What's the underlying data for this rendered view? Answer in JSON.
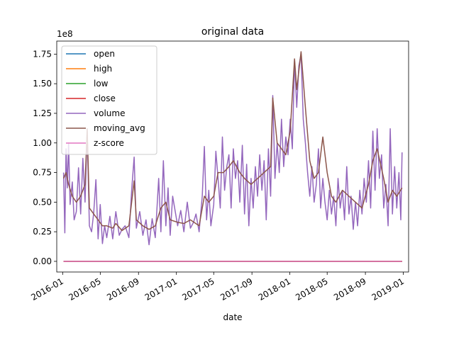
{
  "chart_data": {
    "type": "line",
    "title": "original data",
    "xlabel": "date",
    "ylabel": "",
    "y_offset_text": "1e8",
    "xlim": [
      "2015-12-13",
      "2019-01-18"
    ],
    "ylim": [
      -0.09,
      1.86
    ],
    "y_scale_multiplier": 100000000,
    "x_ticks": [
      "2016-01",
      "2016-05",
      "2016-09",
      "2017-01",
      "2017-05",
      "2017-09",
      "2018-01",
      "2018-05",
      "2018-09",
      "2019-01"
    ],
    "x_tick_dates": [
      "2016-01-01",
      "2016-05-01",
      "2016-09-01",
      "2017-01-01",
      "2017-05-01",
      "2017-09-01",
      "2018-01-01",
      "2018-05-01",
      "2018-09-01",
      "2019-01-01"
    ],
    "y_ticks": [
      "0.00",
      "0.25",
      "0.50",
      "0.75",
      "1.00",
      "1.25",
      "1.50",
      "1.75"
    ],
    "y_tick_values": [
      0.0,
      0.25,
      0.5,
      0.75,
      1.0,
      1.25,
      1.5,
      1.75
    ],
    "legend_position": "upper-left",
    "grid": false,
    "series": [
      {
        "name": "open",
        "color": "#1f77b4",
        "values": [
          [
            "2016-01-04",
            0.0
          ],
          [
            "2018-12-28",
            0.0
          ]
        ]
      },
      {
        "name": "high",
        "color": "#ff7f0e",
        "values": [
          [
            "2016-01-04",
            0.0
          ],
          [
            "2018-12-28",
            0.0
          ]
        ]
      },
      {
        "name": "low",
        "color": "#2ca02c",
        "values": [
          [
            "2016-01-04",
            0.0
          ],
          [
            "2018-12-28",
            0.0
          ]
        ]
      },
      {
        "name": "close",
        "color": "#d62728",
        "values": [
          [
            "2016-01-04",
            0.0
          ],
          [
            "2018-12-28",
            0.0
          ]
        ]
      },
      {
        "name": "volume",
        "color": "#9467bd",
        "values": [
          [
            "2016-01-04",
            0.75
          ],
          [
            "2016-01-08",
            0.24
          ],
          [
            "2016-01-12",
            0.95
          ],
          [
            "2016-01-16",
            0.62
          ],
          [
            "2016-01-20",
            1.0
          ],
          [
            "2016-01-25",
            0.48
          ],
          [
            "2016-02-01",
            0.67
          ],
          [
            "2016-02-07",
            0.35
          ],
          [
            "2016-02-14",
            0.42
          ],
          [
            "2016-02-21",
            0.79
          ],
          [
            "2016-02-28",
            0.4
          ],
          [
            "2016-03-06",
            0.87
          ],
          [
            "2016-03-13",
            0.5
          ],
          [
            "2016-03-20",
            1.1
          ],
          [
            "2016-03-27",
            0.3
          ],
          [
            "2016-04-03",
            0.25
          ],
          [
            "2016-04-10",
            0.41
          ],
          [
            "2016-04-17",
            0.69
          ],
          [
            "2016-04-24",
            0.19
          ],
          [
            "2016-05-01",
            0.48
          ],
          [
            "2016-05-08",
            0.15
          ],
          [
            "2016-05-15",
            0.3
          ],
          [
            "2016-05-22",
            0.2
          ],
          [
            "2016-06-01",
            0.38
          ],
          [
            "2016-06-10",
            0.19
          ],
          [
            "2016-06-20",
            0.42
          ],
          [
            "2016-07-01",
            0.22
          ],
          [
            "2016-07-10",
            0.27
          ],
          [
            "2016-07-20",
            0.3
          ],
          [
            "2016-08-01",
            0.2
          ],
          [
            "2016-08-10",
            0.6
          ],
          [
            "2016-08-18",
            0.88
          ],
          [
            "2016-08-25",
            0.28
          ],
          [
            "2016-09-05",
            0.42
          ],
          [
            "2016-09-15",
            0.22
          ],
          [
            "2016-09-25",
            0.35
          ],
          [
            "2016-10-05",
            0.14
          ],
          [
            "2016-10-15",
            0.36
          ],
          [
            "2016-10-25",
            0.2
          ],
          [
            "2016-11-05",
            0.7
          ],
          [
            "2016-11-12",
            0.25
          ],
          [
            "2016-11-20",
            0.85
          ],
          [
            "2016-11-28",
            0.3
          ],
          [
            "2016-12-05",
            0.62
          ],
          [
            "2016-12-12",
            0.22
          ],
          [
            "2016-12-20",
            0.55
          ],
          [
            "2017-01-05",
            0.3
          ],
          [
            "2017-01-15",
            0.43
          ],
          [
            "2017-01-25",
            0.25
          ],
          [
            "2017-02-05",
            0.5
          ],
          [
            "2017-02-15",
            0.28
          ],
          [
            "2017-02-25",
            0.33
          ],
          [
            "2017-03-05",
            0.4
          ],
          [
            "2017-03-15",
            0.25
          ],
          [
            "2017-03-25",
            0.55
          ],
          [
            "2017-04-01",
            0.97
          ],
          [
            "2017-04-08",
            0.35
          ],
          [
            "2017-04-15",
            0.6
          ],
          [
            "2017-04-22",
            0.3
          ],
          [
            "2017-05-01",
            0.48
          ],
          [
            "2017-05-08",
            0.93
          ],
          [
            "2017-05-15",
            0.7
          ],
          [
            "2017-05-22",
            0.45
          ],
          [
            "2017-05-29",
            1.05
          ],
          [
            "2017-06-05",
            0.6
          ],
          [
            "2017-06-12",
            0.8
          ],
          [
            "2017-06-19",
            0.9
          ],
          [
            "2017-06-26",
            0.45
          ],
          [
            "2017-07-03",
            0.95
          ],
          [
            "2017-07-10",
            0.7
          ],
          [
            "2017-07-17",
            0.85
          ],
          [
            "2017-07-24",
            0.5
          ],
          [
            "2017-08-01",
            0.98
          ],
          [
            "2017-08-08",
            0.4
          ],
          [
            "2017-08-15",
            0.82
          ],
          [
            "2017-08-22",
            0.3
          ],
          [
            "2017-08-29",
            0.7
          ],
          [
            "2017-09-05",
            0.45
          ],
          [
            "2017-09-12",
            0.8
          ],
          [
            "2017-09-19",
            0.55
          ],
          [
            "2017-09-26",
            0.9
          ],
          [
            "2017-10-03",
            0.6
          ],
          [
            "2017-10-10",
            0.85
          ],
          [
            "2017-10-17",
            0.35
          ],
          [
            "2017-10-24",
            0.95
          ],
          [
            "2017-10-31",
            0.55
          ],
          [
            "2017-11-07",
            1.4
          ],
          [
            "2017-11-14",
            0.7
          ],
          [
            "2017-11-21",
            1.0
          ],
          [
            "2017-11-28",
            0.75
          ],
          [
            "2017-12-05",
            1.2
          ],
          [
            "2017-12-12",
            0.8
          ],
          [
            "2017-12-19",
            1.05
          ],
          [
            "2017-12-26",
            0.9
          ],
          [
            "2018-01-02",
            1.2
          ],
          [
            "2018-01-09",
            0.95
          ],
          [
            "2018-01-16",
            1.7
          ],
          [
            "2018-01-23",
            1.3
          ],
          [
            "2018-01-30",
            1.65
          ],
          [
            "2018-02-06",
            1.75
          ],
          [
            "2018-02-13",
            1.2
          ],
          [
            "2018-02-20",
            1.0
          ],
          [
            "2018-02-27",
            0.75
          ],
          [
            "2018-03-06",
            0.55
          ],
          [
            "2018-03-13",
            0.8
          ],
          [
            "2018-03-20",
            0.5
          ],
          [
            "2018-03-27",
            0.65
          ],
          [
            "2018-04-03",
            0.95
          ],
          [
            "2018-04-10",
            0.45
          ],
          [
            "2018-04-17",
            0.7
          ],
          [
            "2018-04-24",
            0.5
          ],
          [
            "2018-05-01",
            0.35
          ],
          [
            "2018-05-08",
            0.6
          ],
          [
            "2018-05-15",
            0.4
          ],
          [
            "2018-05-22",
            0.55
          ],
          [
            "2018-05-29",
            0.3
          ],
          [
            "2018-06-05",
            0.7
          ],
          [
            "2018-06-12",
            0.45
          ],
          [
            "2018-06-19",
            0.6
          ],
          [
            "2018-06-26",
            0.35
          ],
          [
            "2018-07-03",
            0.8
          ],
          [
            "2018-07-10",
            0.4
          ],
          [
            "2018-07-17",
            0.55
          ],
          [
            "2018-07-24",
            0.27
          ],
          [
            "2018-07-31",
            0.5
          ],
          [
            "2018-08-07",
            0.3
          ],
          [
            "2018-08-14",
            0.6
          ],
          [
            "2018-08-21",
            0.4
          ],
          [
            "2018-08-28",
            0.7
          ],
          [
            "2018-09-04",
            0.5
          ],
          [
            "2018-09-11",
            0.85
          ],
          [
            "2018-09-18",
            0.45
          ],
          [
            "2018-09-25",
            1.1
          ],
          [
            "2018-10-02",
            0.6
          ],
          [
            "2018-10-09",
            1.12
          ],
          [
            "2018-10-16",
            0.7
          ],
          [
            "2018-10-23",
            0.9
          ],
          [
            "2018-10-30",
            0.45
          ],
          [
            "2018-11-06",
            0.65
          ],
          [
            "2018-11-13",
            0.3
          ],
          [
            "2018-11-20",
            1.12
          ],
          [
            "2018-11-27",
            0.4
          ],
          [
            "2018-12-04",
            0.8
          ],
          [
            "2018-12-11",
            0.45
          ],
          [
            "2018-12-18",
            0.75
          ],
          [
            "2018-12-24",
            0.35
          ],
          [
            "2018-12-28",
            0.92
          ]
        ]
      },
      {
        "name": "moving_avg",
        "color": "#8c564b",
        "values": [
          [
            "2016-01-04",
            0.7
          ],
          [
            "2016-01-12",
            0.75
          ],
          [
            "2016-01-20",
            0.65
          ],
          [
            "2016-02-01",
            0.55
          ],
          [
            "2016-02-14",
            0.5
          ],
          [
            "2016-02-28",
            0.55
          ],
          [
            "2016-03-13",
            0.65
          ],
          [
            "2016-03-20",
            1.12
          ],
          [
            "2016-03-27",
            0.45
          ],
          [
            "2016-04-10",
            0.4
          ],
          [
            "2016-04-24",
            0.35
          ],
          [
            "2016-05-08",
            0.3
          ],
          [
            "2016-05-22",
            0.3
          ],
          [
            "2016-06-10",
            0.28
          ],
          [
            "2016-06-20",
            0.32
          ],
          [
            "2016-07-10",
            0.26
          ],
          [
            "2016-08-01",
            0.3
          ],
          [
            "2016-08-18",
            0.68
          ],
          [
            "2016-08-25",
            0.35
          ],
          [
            "2016-09-15",
            0.3
          ],
          [
            "2016-10-05",
            0.27
          ],
          [
            "2016-10-25",
            0.3
          ],
          [
            "2016-11-12",
            0.45
          ],
          [
            "2016-11-28",
            0.5
          ],
          [
            "2016-12-12",
            0.35
          ],
          [
            "2017-01-05",
            0.33
          ],
          [
            "2017-01-25",
            0.32
          ],
          [
            "2017-02-15",
            0.35
          ],
          [
            "2017-03-15",
            0.3
          ],
          [
            "2017-04-01",
            0.55
          ],
          [
            "2017-04-15",
            0.5
          ],
          [
            "2017-05-01",
            0.55
          ],
          [
            "2017-05-15",
            0.75
          ],
          [
            "2017-06-01",
            0.75
          ],
          [
            "2017-06-19",
            0.8
          ],
          [
            "2017-07-03",
            0.85
          ],
          [
            "2017-07-24",
            0.75
          ],
          [
            "2017-08-08",
            0.7
          ],
          [
            "2017-08-29",
            0.65
          ],
          [
            "2017-09-19",
            0.7
          ],
          [
            "2017-10-10",
            0.75
          ],
          [
            "2017-10-31",
            0.8
          ],
          [
            "2017-11-07",
            1.38
          ],
          [
            "2017-11-21",
            1.0
          ],
          [
            "2017-12-05",
            0.95
          ],
          [
            "2017-12-19",
            0.9
          ],
          [
            "2018-01-02",
            1.1
          ],
          [
            "2018-01-16",
            1.71
          ],
          [
            "2018-01-23",
            1.45
          ],
          [
            "2018-02-06",
            1.77
          ],
          [
            "2018-02-20",
            1.3
          ],
          [
            "2018-03-06",
            0.85
          ],
          [
            "2018-03-20",
            0.7
          ],
          [
            "2018-04-03",
            0.75
          ],
          [
            "2018-04-17",
            1.05
          ],
          [
            "2018-05-01",
            0.75
          ],
          [
            "2018-05-15",
            0.55
          ],
          [
            "2018-05-29",
            0.5
          ],
          [
            "2018-06-19",
            0.6
          ],
          [
            "2018-07-10",
            0.55
          ],
          [
            "2018-07-31",
            0.5
          ],
          [
            "2018-08-21",
            0.45
          ],
          [
            "2018-09-11",
            0.65
          ],
          [
            "2018-09-25",
            0.85
          ],
          [
            "2018-10-09",
            0.95
          ],
          [
            "2018-10-30",
            0.7
          ],
          [
            "2018-11-13",
            0.5
          ],
          [
            "2018-11-27",
            0.6
          ],
          [
            "2018-12-11",
            0.55
          ],
          [
            "2018-12-28",
            0.62
          ]
        ]
      },
      {
        "name": "z-score",
        "color": "#e377c2",
        "values": [
          [
            "2016-01-04",
            0.0
          ],
          [
            "2018-12-28",
            0.0
          ]
        ]
      }
    ]
  }
}
